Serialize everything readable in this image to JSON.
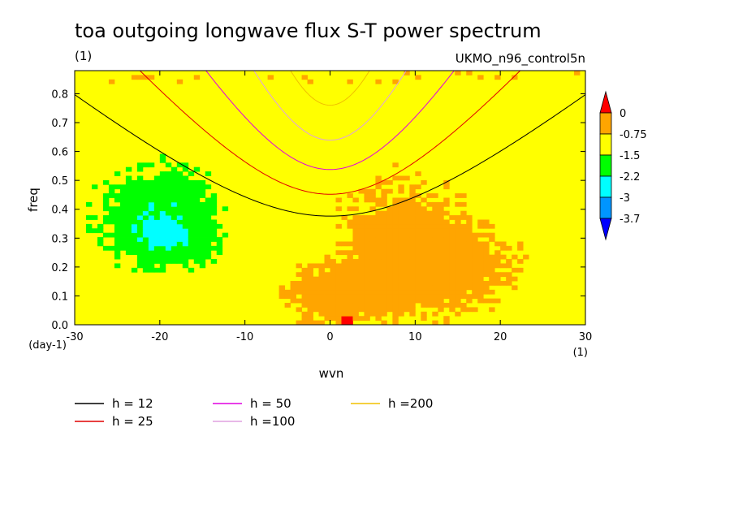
{
  "chart_data": {
    "type": "heatmap",
    "title": "toa outgoing longwave flux S-T power spectrum",
    "subtitle_left": "(1)",
    "subtitle_right": "UKMO_n96_control5n",
    "xlabel": "wvn",
    "ylabel": "freq",
    "x_unit_label": "(1)",
    "y_unit_label": "(day-1)",
    "xlim": [
      -30,
      30
    ],
    "ylim": [
      0,
      0.88
    ],
    "x_ticks": [
      -30,
      -20,
      -10,
      0,
      10,
      20,
      30
    ],
    "x_tick_labels": [
      "-30",
      "-20",
      "-10",
      "0",
      "10",
      "20",
      "30"
    ],
    "y_ticks": [
      0,
      0.1,
      0.2,
      0.3,
      0.4,
      0.5,
      0.6,
      0.7,
      0.8
    ],
    "y_tick_labels": [
      "0.0",
      "0.1",
      "0.2",
      "0.3",
      "0.4",
      "0.5",
      "0.6",
      "0.7",
      "0.8"
    ],
    "grid": false,
    "colorbar": {
      "levels": [
        "0",
        "-0.75",
        "-1.5",
        "-2.2",
        "-3",
        "-3.7"
      ],
      "colors": [
        "#ff0000",
        "#ffa500",
        "#ffff00",
        "#00ff00",
        "#00ffff",
        "#0095ff",
        "#0000ff"
      ]
    },
    "field_description_regions": [
      {
        "name": "background",
        "level_color": "#ffff00"
      },
      {
        "name": "orange-east",
        "center": [
          12,
          0.2
        ],
        "level_color": "#ffa500"
      },
      {
        "name": "orange-lowfreq",
        "center": [
          0,
          0.1
        ],
        "level_color": "#ffa500"
      },
      {
        "name": "green-west",
        "center": [
          -20,
          0.4
        ],
        "level_color": "#00ff00"
      },
      {
        "name": "cyan-west",
        "center": [
          -19,
          0.3
        ],
        "level_color": "#00ffff"
      },
      {
        "name": "red-peak",
        "center": [
          2,
          0.02
        ],
        "level_color": "#ff0000"
      }
    ],
    "series": [
      {
        "name": "h = 12",
        "h": 12,
        "color": "#000000"
      },
      {
        "name": "h = 25",
        "h": 25,
        "color": "#e00000"
      },
      {
        "name": "h = 50",
        "h": 50,
        "color": "#e000e0"
      },
      {
        "name": "h =100",
        "h": 100,
        "color": "#e0a0e0"
      },
      {
        "name": "h =200",
        "h": 200,
        "color": "#f0c000"
      }
    ]
  }
}
